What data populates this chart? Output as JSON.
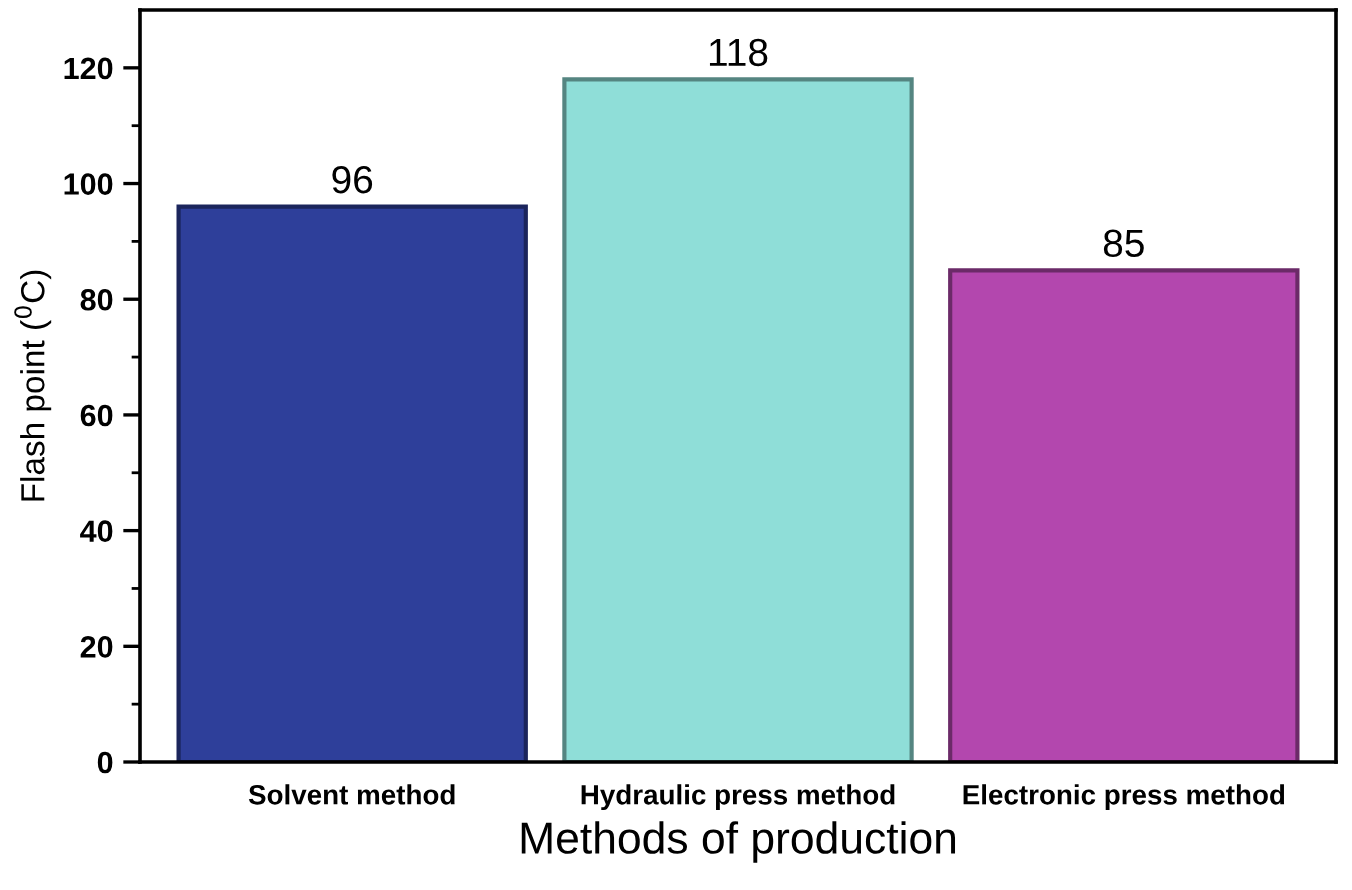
{
  "chart_data": {
    "type": "bar",
    "xlabel": "Methods of production",
    "ylabel": "Flash point ($^{0}$C)",
    "categories": [
      "Solvent method",
      "Hydraulic press method",
      "Electronic press method"
    ],
    "values": [
      96,
      118,
      85
    ],
    "colors": [
      "#2e3f9a",
      "#8fded8",
      "#b347ae"
    ],
    "data_labels": true,
    "ylim": [
      0,
      130
    ],
    "yticks": [
      0,
      {
        "value": 10,
        "label": null
      },
      20,
      {
        "value": 30,
        "label": null
      },
      40,
      {
        "value": 50,
        "label": null
      },
      60,
      {
        "value": 70,
        "label": null
      },
      80,
      {
        "value": 90,
        "label": null
      },
      100,
      {
        "value": 110,
        "label": null
      },
      120
    ],
    "grid": false,
    "legend": false
  }
}
